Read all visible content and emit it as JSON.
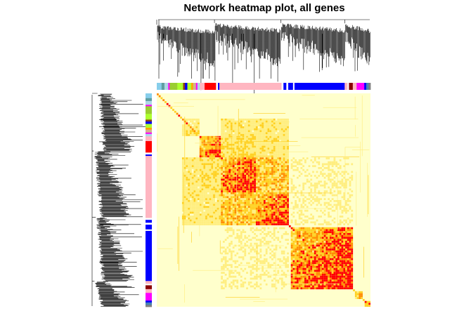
{
  "chart_data": {
    "type": "heatmap",
    "title": "Network heatmap plot, all genes",
    "xlabel": "",
    "ylabel": "",
    "legend": "none",
    "grid": false,
    "colorscale": [
      "#FFFFCC",
      "#FFEE80",
      "#FFD020",
      "#FF8C00",
      "#FF0000"
    ],
    "module_colors_order": [
      "#87CEEB",
      "#ADD8E6",
      "#9ACD32",
      "#ADFF2F",
      "#FF00FF",
      "#0000FF",
      "#8B4513",
      "#ADFF2F",
      "#FFB6C1",
      "#FF0000",
      "#FFFFFF",
      "#0000FF",
      "#FFB6C1",
      "#FFFFFF",
      "#0000FF",
      "#FFFFFF",
      "#0000FF",
      "#8B0000",
      "#FFB6C1",
      "#FF00FF",
      "#0000FF",
      "#4682B4",
      "#808080"
    ],
    "module_segments": [
      {
        "color": "#87CEEB",
        "weight": 1.0
      },
      {
        "color": "#5F9EA0",
        "weight": 0.6
      },
      {
        "color": "#ADD8E6",
        "weight": 0.8
      },
      {
        "color": "#FF00FF",
        "weight": 0.3
      },
      {
        "color": "#9ACD32",
        "weight": 1.6
      },
      {
        "color": "#ADFF2F",
        "weight": 1.2
      },
      {
        "color": "#8B4513",
        "weight": 0.4
      },
      {
        "color": "#0000FF",
        "weight": 0.5
      },
      {
        "color": "#ADFF2F",
        "weight": 0.8
      },
      {
        "color": "#FFA500",
        "weight": 0.4
      },
      {
        "color": "#D2B48C",
        "weight": 0.6
      },
      {
        "color": "#FF00FF",
        "weight": 0.3
      },
      {
        "color": "#ADD8E6",
        "weight": 0.5
      },
      {
        "color": "#FFB6C1",
        "weight": 1.0
      },
      {
        "color": "#FF0000",
        "weight": 2.4
      },
      {
        "color": "#FFFFFF",
        "weight": 0.4
      },
      {
        "color": "#0000FF",
        "weight": 0.3
      },
      {
        "color": "#FFB6C1",
        "weight": 13.0
      },
      {
        "color": "#FFFFFF",
        "weight": 0.4
      },
      {
        "color": "#0000FF",
        "weight": 0.6
      },
      {
        "color": "#FFFFFF",
        "weight": 0.4
      },
      {
        "color": "#0000FF",
        "weight": 1.0
      },
      {
        "color": "#FFFFFF",
        "weight": 0.3
      },
      {
        "color": "#0000FF",
        "weight": 10.5
      },
      {
        "color": "#FFB6C1",
        "weight": 0.6
      },
      {
        "color": "#FFFFFF",
        "weight": 0.3
      },
      {
        "color": "#8B0000",
        "weight": 0.8
      },
      {
        "color": "#FFB6C1",
        "weight": 0.8
      },
      {
        "color": "#FF00FF",
        "weight": 1.6
      },
      {
        "color": "#0000FF",
        "weight": 0.4
      },
      {
        "color": "#4682B4",
        "weight": 0.5
      },
      {
        "color": "#808080",
        "weight": 0.4
      }
    ],
    "blocks": [
      {
        "start": 0.12,
        "end": 0.2,
        "peak": 0.35
      },
      {
        "start": 0.2,
        "end": 0.3,
        "peak": 0.85
      },
      {
        "start": 0.3,
        "end": 0.46,
        "peak": 0.95
      },
      {
        "start": 0.46,
        "end": 0.62,
        "peak": 0.95
      },
      {
        "start": 0.63,
        "end": 0.92,
        "peak": 1.0
      },
      {
        "start": 0.93,
        "end": 0.96,
        "peak": 0.6
      },
      {
        "start": 0.97,
        "end": 1.0,
        "peak": 0.7
      }
    ],
    "off_diagonal_blocks": [
      {
        "rows": [
          0.3,
          0.46
        ],
        "cols": [
          0.46,
          0.62
        ],
        "strength": 0.45
      },
      {
        "rows": [
          0.2,
          0.3
        ],
        "cols": [
          0.3,
          0.46
        ],
        "strength": 0.3
      },
      {
        "rows": [
          0.3,
          0.62
        ],
        "cols": [
          0.12,
          0.3
        ],
        "strength": 0.25
      },
      {
        "rows": [
          0.63,
          0.92
        ],
        "cols": [
          0.3,
          0.62
        ],
        "strength": 0.12
      }
    ]
  }
}
